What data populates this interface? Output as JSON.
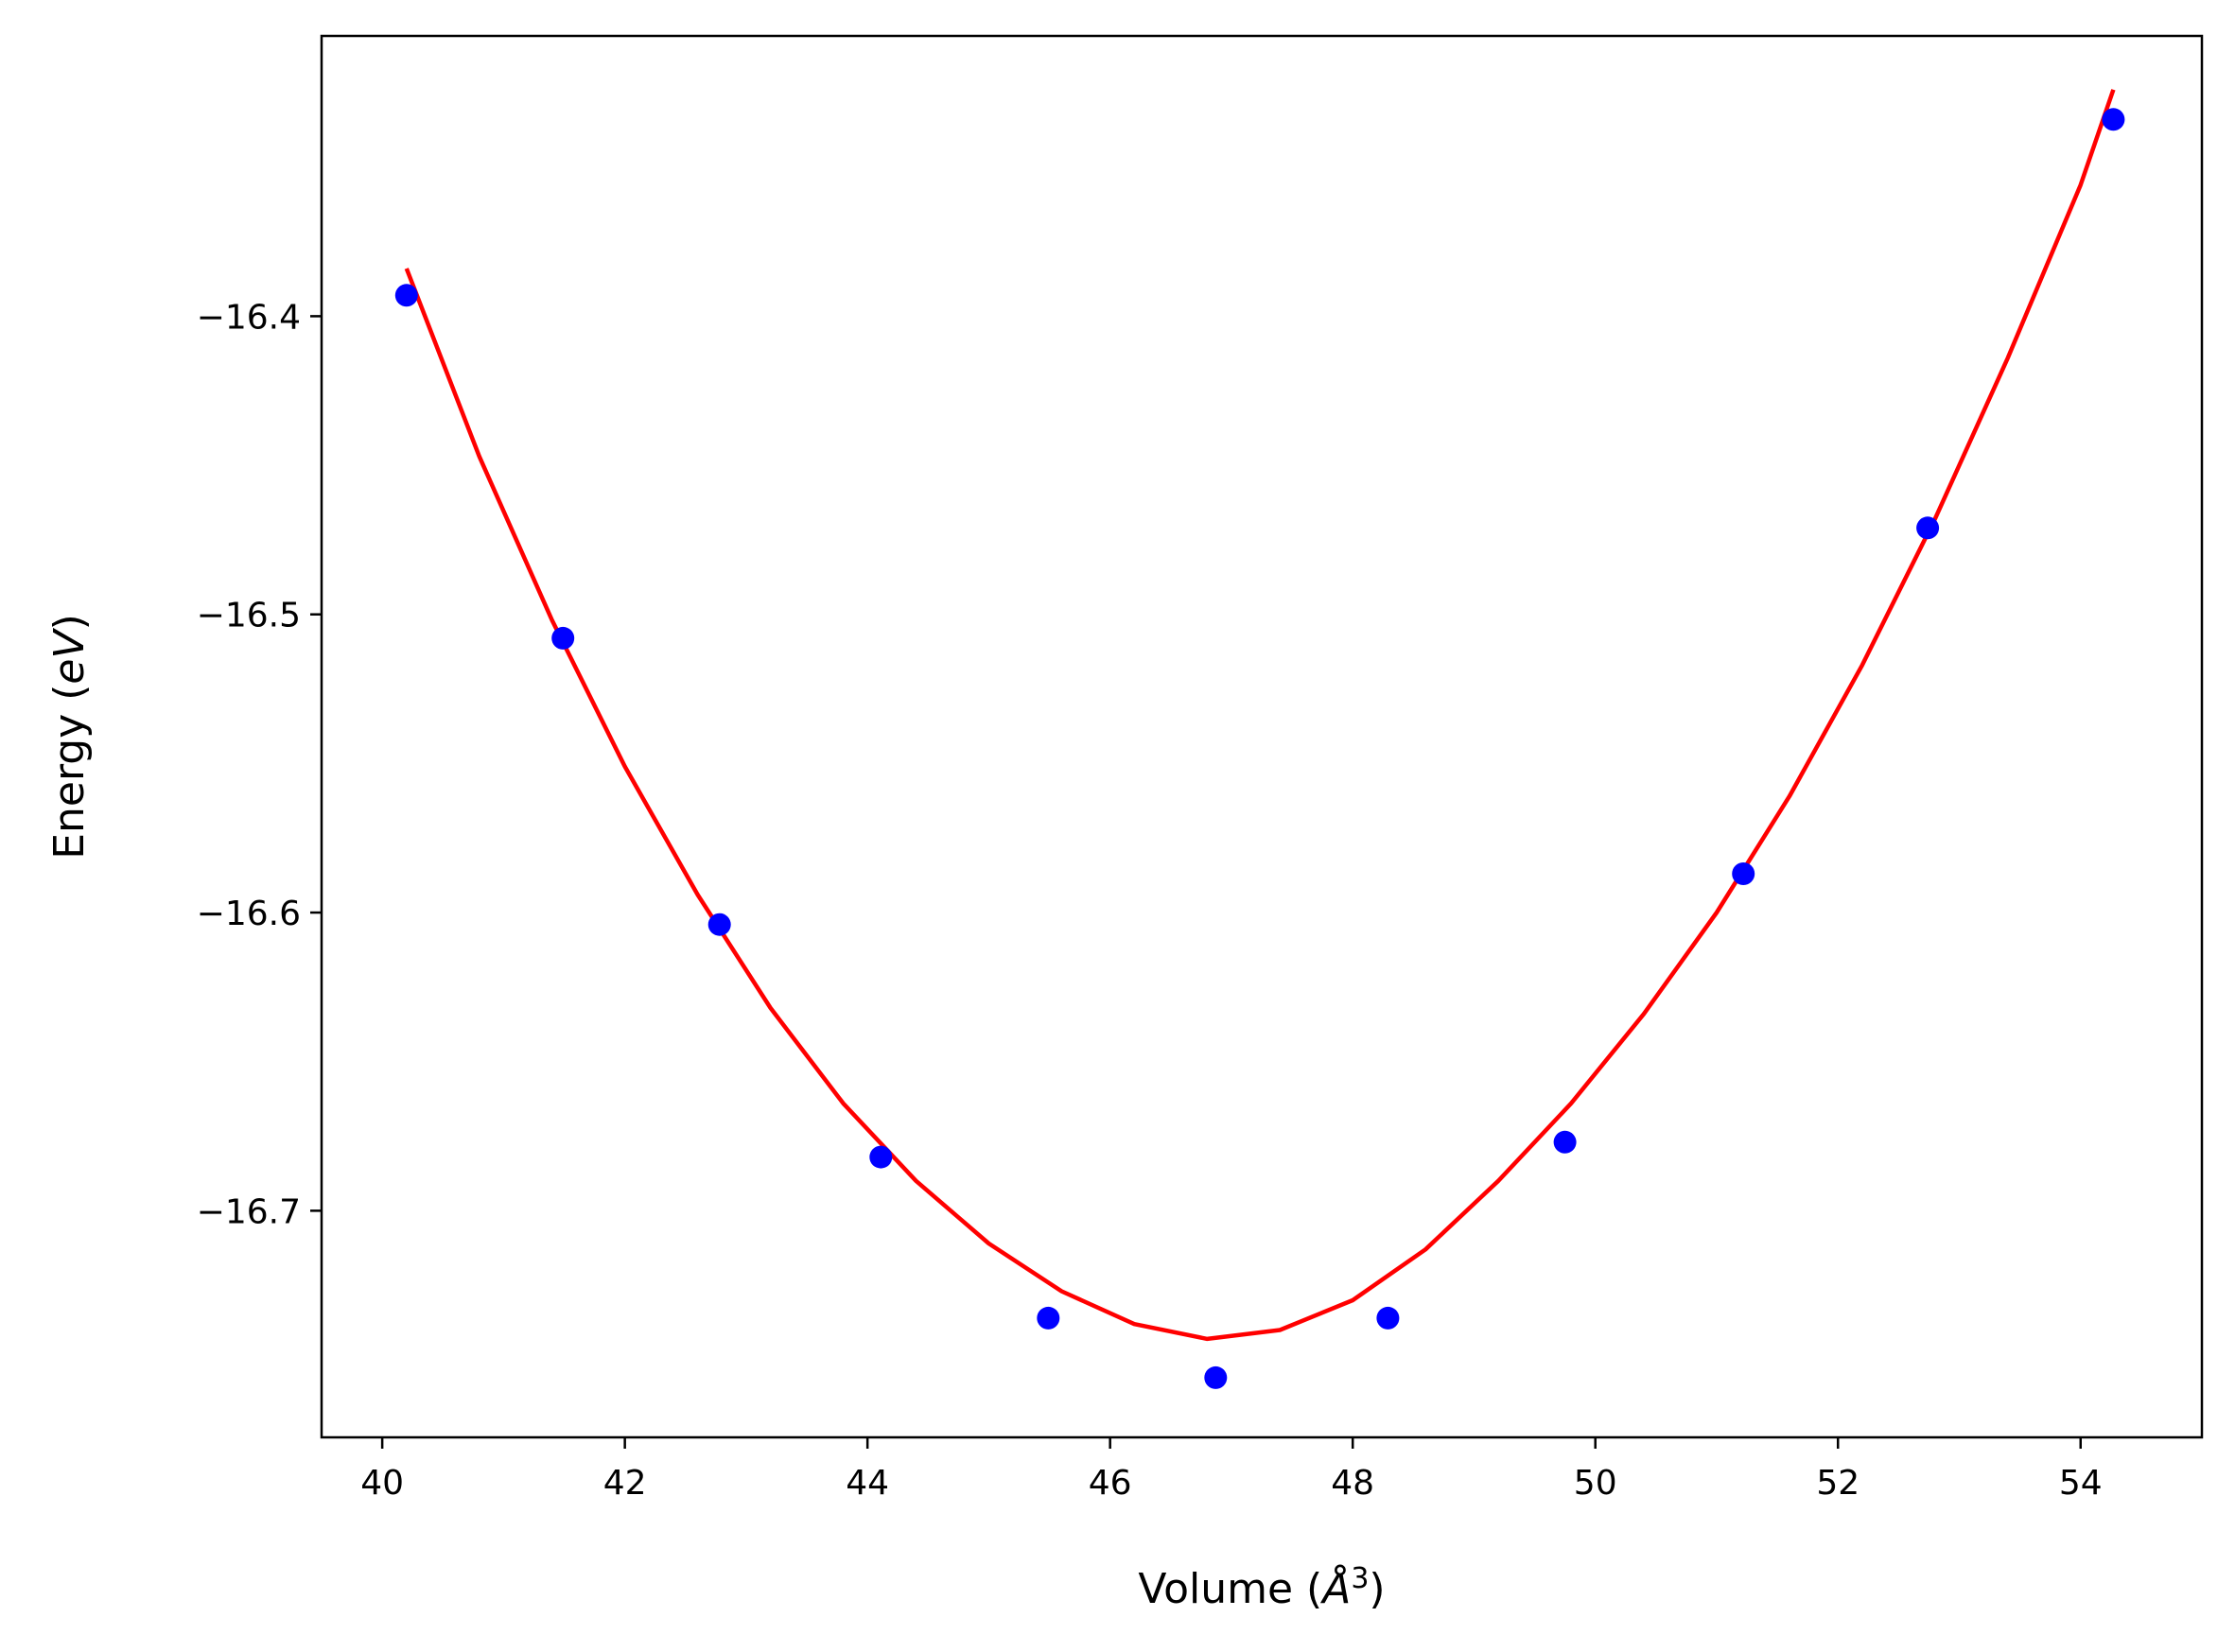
{
  "chart_data": {
    "type": "scatter",
    "title": "",
    "xlabel": "Volume (Å³)",
    "xlabel_parts": {
      "prefix": "Volume (",
      "unit": "Å",
      "exponent": "3",
      "suffix": ")"
    },
    "ylabel": "Energy (eV)",
    "ylabel_parts": {
      "prefix": "Energy (",
      "unit": "eV",
      "suffix": ")"
    },
    "xlim": [
      39.5,
      55.0
    ],
    "ylim": [
      -16.776,
      -16.306
    ],
    "xticks": [
      40,
      42,
      44,
      46,
      48,
      50,
      52,
      54
    ],
    "xtick_labels": [
      "40",
      "42",
      "44",
      "46",
      "48",
      "50",
      "52",
      "54"
    ],
    "yticks": [
      -16.4,
      -16.5,
      -16.6,
      -16.7
    ],
    "ytick_labels": [
      "−16.4",
      "−16.5",
      "−16.6",
      "−16.7"
    ],
    "grid": false,
    "legend": "none",
    "series": [
      {
        "kind": "points",
        "color": "#0000ff",
        "x": [
          40.2,
          41.49,
          42.78,
          44.11,
          45.49,
          46.87,
          48.29,
          49.75,
          51.22,
          52.74,
          54.27
        ],
        "y": [
          -16.393,
          -16.508,
          -16.604,
          -16.682,
          -16.736,
          -16.756,
          -16.736,
          -16.677,
          -16.587,
          -16.471,
          -16.334
        ]
      },
      {
        "kind": "fit-line",
        "color": "#ff0000",
        "x": [
          40.2,
          40.8,
          41.4,
          42.0,
          42.6,
          43.2,
          43.8,
          44.4,
          45.0,
          45.6,
          46.2,
          46.8,
          47.4,
          48.0,
          48.6,
          49.2,
          49.8,
          50.4,
          51.0,
          51.6,
          52.2,
          52.8,
          53.4,
          54.0,
          54.27
        ],
        "y": [
          -16.384,
          -16.447,
          -16.502,
          -16.551,
          -16.594,
          -16.632,
          -16.664,
          -16.69,
          -16.711,
          -16.727,
          -16.738,
          -16.743,
          -16.74,
          -16.73,
          -16.713,
          -16.69,
          -16.664,
          -16.634,
          -16.6,
          -16.561,
          -16.517,
          -16.468,
          -16.414,
          -16.356,
          -16.324
        ]
      }
    ]
  }
}
